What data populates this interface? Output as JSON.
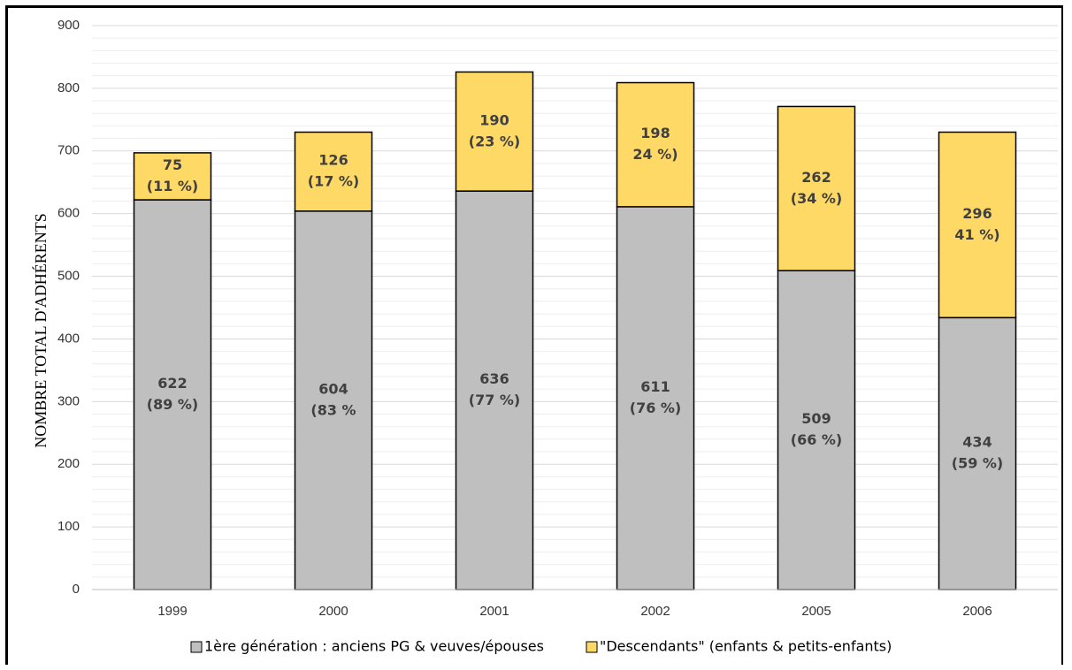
{
  "chart_data": {
    "type": "bar",
    "stacked": true,
    "title": "",
    "xlabel": "",
    "ylabel": "NOMBRE TOTAL D'ADHÉRENTS",
    "ylim": [
      0,
      900
    ],
    "yticks": [
      "0",
      "100",
      "200",
      "300",
      "400",
      "500",
      "600",
      "700",
      "800",
      "900"
    ],
    "grid": true,
    "legend_position": "bottom",
    "categories": [
      "1999",
      "2000",
      "2001",
      "2002",
      "2005",
      "2006"
    ],
    "series": [
      {
        "name": "1ère génération : anciens PG & veuves/épouses",
        "color": "#bfbfbf",
        "values": [
          622,
          604,
          636,
          611,
          509,
          434
        ],
        "labels": [
          [
            "622",
            "(89 %)"
          ],
          [
            "604",
            "(83 %"
          ],
          [
            "636",
            "(77 %)"
          ],
          [
            "611",
            "(76 %)"
          ],
          [
            "509",
            "(66 %)"
          ],
          [
            "434",
            "(59 %)"
          ]
        ]
      },
      {
        "name": "\"Descendants\" (enfants & petits-enfants)",
        "color": "#ffd966",
        "values": [
          75,
          126,
          190,
          198,
          262,
          296
        ],
        "labels": [
          [
            "75",
            "(11 %)"
          ],
          [
            "126",
            "(17 %)"
          ],
          [
            "190",
            "(23 %)"
          ],
          [
            "198",
            "24 %)"
          ],
          [
            "262",
            "(34 %)"
          ],
          [
            "296",
            "41 %)"
          ]
        ]
      }
    ]
  }
}
